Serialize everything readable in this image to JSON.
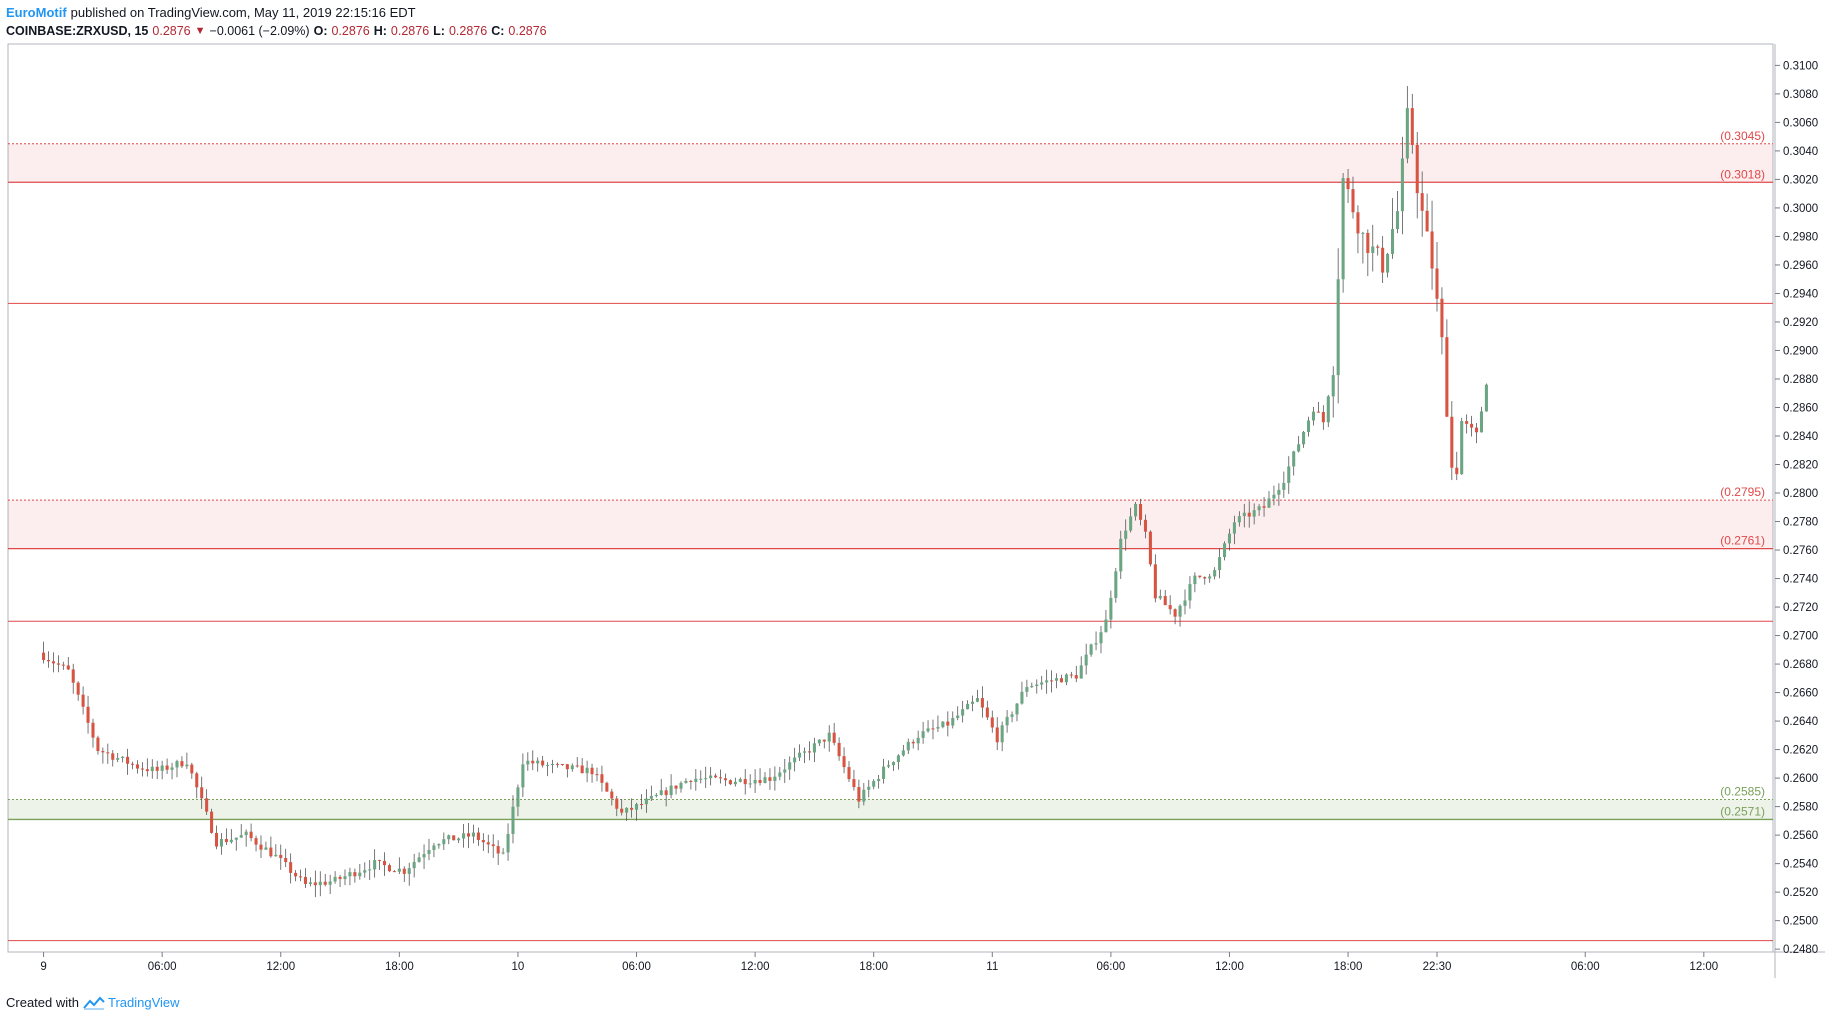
{
  "header": {
    "brand": "EuroMotif",
    "published": "published on TradingView.com, May 11, 2019 22:15:16 EDT",
    "symbol": "COINBASE:ZRXUSD, 15",
    "last": "0.2876",
    "change": "−0.0061 (−2.09%)",
    "o_label": "O:",
    "o_val": "0.2876",
    "h_label": "H:",
    "h_val": "0.2876",
    "l_label": "L:",
    "l_val": "0.2876",
    "c_label": "C:",
    "c_val": "0.2876"
  },
  "footer": {
    "created_with": "Created with",
    "logo_text": "TradingView",
    "logo_icon": "tradingview-logo-icon"
  },
  "colors": {
    "up": "#6ba583",
    "down": "#d75442",
    "resistance": "#e04848",
    "support": "#7aa05a",
    "brand": "#2196f3"
  },
  "chart_data": {
    "type": "candlestick",
    "ylim": [
      0.2478,
      0.3115
    ],
    "ytick_labels": [
      "0.3100",
      "0.3080",
      "0.3060",
      "0.3040",
      "0.3020",
      "0.3000",
      "0.2980",
      "0.2960",
      "0.2940",
      "0.2920",
      "0.2900",
      "0.2880",
      "0.2860",
      "0.2840",
      "0.2820",
      "0.2800",
      "0.2780",
      "0.2760",
      "0.2740",
      "0.2720",
      "0.2700",
      "0.2680",
      "0.2660",
      "0.2640",
      "0.2620",
      "0.2600",
      "0.2580",
      "0.2560",
      "0.2540",
      "0.2520",
      "0.2500",
      "0.2480"
    ],
    "xtick_labels": [
      "9",
      "06:00",
      "12:00",
      "18:00",
      "10",
      "06:00",
      "12:00",
      "18:00",
      "11",
      "06:00",
      "12:00",
      "18:00",
      "22:30",
      "06:00",
      "12:00"
    ],
    "xtick_hours": [
      0,
      6,
      12,
      18,
      24,
      30,
      36,
      42,
      48,
      54,
      60,
      66,
      70.5,
      78,
      84
    ],
    "x_range_hours": [
      -1.8,
      87.5
    ],
    "zones": [
      {
        "from": 0.3018,
        "to": 0.3045,
        "type": "resistance",
        "labels": [
          "(0.3045)",
          "(0.3018)"
        ]
      },
      {
        "from": 0.2761,
        "to": 0.2795,
        "type": "resistance",
        "labels": [
          "(0.2795)",
          "(0.2761)"
        ]
      },
      {
        "from": 0.2571,
        "to": 0.2585,
        "type": "support",
        "labels": [
          "(0.2585)",
          "(0.2571)"
        ]
      }
    ],
    "levels": [
      0.2933,
      0.271,
      0.2486
    ],
    "price_path": [
      [
        0,
        0.2688
      ],
      [
        1.5,
        0.2675
      ],
      [
        3,
        0.262
      ],
      [
        5,
        0.2608
      ],
      [
        6,
        0.2605
      ],
      [
        7.5,
        0.2612
      ],
      [
        9,
        0.2555
      ],
      [
        10.5,
        0.256
      ],
      [
        12,
        0.2545
      ],
      [
        13.5,
        0.2525
      ],
      [
        15,
        0.2528
      ],
      [
        17,
        0.254
      ],
      [
        18.5,
        0.2535
      ],
      [
        20,
        0.2555
      ],
      [
        22,
        0.256
      ],
      [
        23.5,
        0.2545
      ],
      [
        24.5,
        0.2612
      ],
      [
        26,
        0.2608
      ],
      [
        28,
        0.2605
      ],
      [
        29.5,
        0.2575
      ],
      [
        31,
        0.2585
      ],
      [
        33,
        0.26
      ],
      [
        35,
        0.2598
      ],
      [
        37,
        0.26
      ],
      [
        39,
        0.262
      ],
      [
        40,
        0.263
      ],
      [
        41.5,
        0.2585
      ],
      [
        43,
        0.261
      ],
      [
        44.5,
        0.263
      ],
      [
        46,
        0.2638
      ],
      [
        47.5,
        0.2655
      ],
      [
        48.5,
        0.2628
      ],
      [
        50,
        0.2665
      ],
      [
        52.5,
        0.2672
      ],
      [
        54,
        0.271
      ],
      [
        54.8,
        0.277
      ],
      [
        55.5,
        0.279
      ],
      [
        56,
        0.277
      ],
      [
        56.5,
        0.2728
      ],
      [
        57.5,
        0.2715
      ],
      [
        58.5,
        0.274
      ],
      [
        59.5,
        0.2745
      ],
      [
        60.5,
        0.278
      ],
      [
        62,
        0.279
      ],
      [
        63,
        0.281
      ],
      [
        64.5,
        0.286
      ],
      [
        65,
        0.285
      ],
      [
        65.5,
        0.289
      ],
      [
        66,
        0.302
      ],
      [
        67,
        0.298
      ],
      [
        68,
        0.296
      ],
      [
        68.8,
        0.3
      ],
      [
        69.3,
        0.307
      ],
      [
        69.8,
        0.301
      ],
      [
        70.5,
        0.296
      ],
      [
        71,
        0.2905
      ],
      [
        71.6,
        0.28
      ],
      [
        72,
        0.285
      ],
      [
        72.8,
        0.284
      ],
      [
        73.2,
        0.2876
      ]
    ],
    "last_price": 0.2876
  }
}
